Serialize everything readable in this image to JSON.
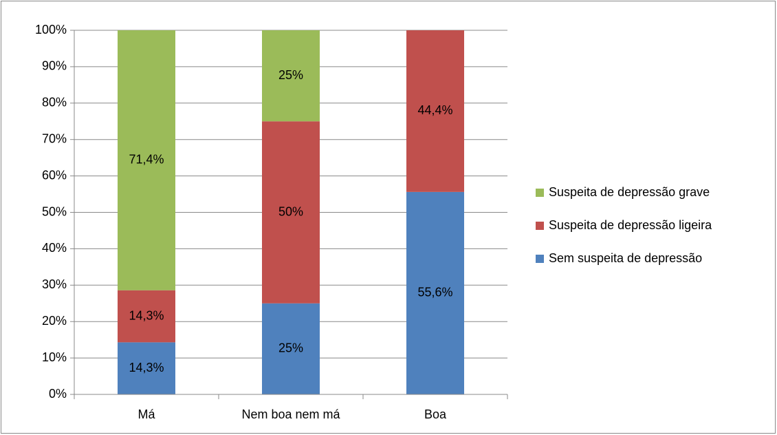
{
  "chart_data": {
    "type": "stacked_bar",
    "categories": [
      "Má",
      "Nem boa nem má",
      "Boa"
    ],
    "series": [
      {
        "name": "Sem suspeita de depressão",
        "color": "#4f81bd",
        "values": [
          14.3,
          25,
          55.6
        ],
        "value_labels": [
          "14,3%",
          "25%",
          "55,6%"
        ]
      },
      {
        "name": "Suspeita de depressão ligeira",
        "color": "#c0504d",
        "values": [
          14.3,
          50,
          44.4
        ],
        "value_labels": [
          "14,3%",
          "50%",
          "44,4%"
        ]
      },
      {
        "name": "Suspeita de depressão grave",
        "color": "#9bbb59",
        "values": [
          71.4,
          25,
          null
        ],
        "value_labels": [
          "71,4%",
          "25%",
          null
        ]
      }
    ],
    "ylim": [
      0,
      100
    ],
    "yticks": [
      {
        "value": 0,
        "label": "0%"
      },
      {
        "value": 10,
        "label": "10%"
      },
      {
        "value": 20,
        "label": "20%"
      },
      {
        "value": 30,
        "label": "30%"
      },
      {
        "value": 40,
        "label": "40%"
      },
      {
        "value": 50,
        "label": "50%"
      },
      {
        "value": 60,
        "label": "60%"
      },
      {
        "value": 70,
        "label": "70%"
      },
      {
        "value": 80,
        "label": "80%"
      },
      {
        "value": 90,
        "label": "90%"
      },
      {
        "value": 100,
        "label": "100%"
      }
    ],
    "grid": true,
    "legend": "right"
  }
}
